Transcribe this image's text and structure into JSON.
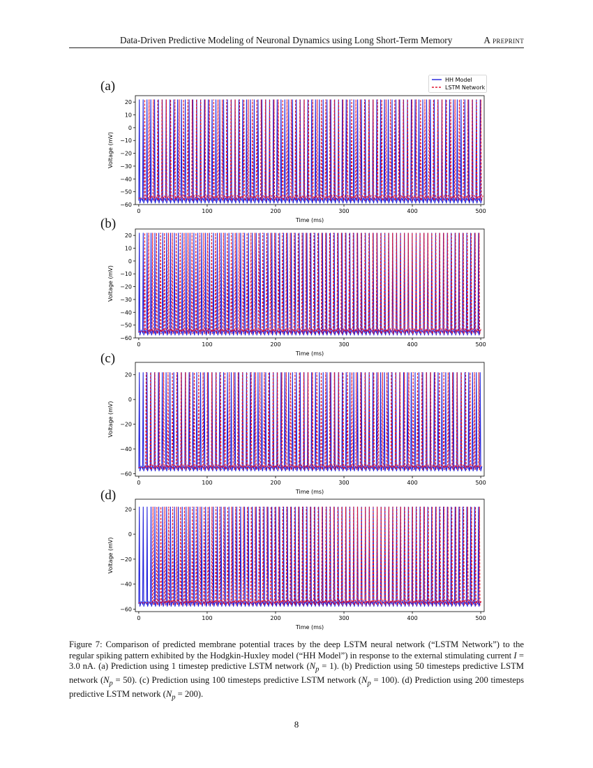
{
  "header": {
    "title": "Data-Driven Predictive Modeling of Neuronal Dynamics using Long Short-Term Memory",
    "tag": "A preprint"
  },
  "legend": {
    "hh_label": "HH Model",
    "lstm_label": "LSTM Network",
    "hh_color": "#1f1fdc",
    "lstm_color": "#e01530"
  },
  "chart_data": [
    {
      "panel": "(a)",
      "type": "line",
      "xlabel": "Time (ms)",
      "ylabel": "Voltage (mV)",
      "xlim": [
        -5,
        505
      ],
      "ylim": [
        -60,
        25
      ],
      "xticks": [
        0,
        100,
        200,
        300,
        400,
        500
      ],
      "yticks": [
        -60,
        -50,
        -40,
        -30,
        -20,
        -10,
        0,
        10,
        20
      ],
      "series": [
        {
          "name": "HH Model",
          "style": "solid",
          "spike_start_ms": 0,
          "interspike_ms": 5.6,
          "peak_mv": 22,
          "rest_mv": -57
        },
        {
          "name": "LSTM Network",
          "style": "dashed",
          "spike_start_ms": 8,
          "interspike_ms": 6.3,
          "peak_mv": 22,
          "rest_mv": -55
        }
      ]
    },
    {
      "panel": "(b)",
      "type": "line",
      "xlabel": "Time (ms)",
      "ylabel": "Voltage (mV)",
      "xlim": [
        -5,
        505
      ],
      "ylim": [
        -60,
        25
      ],
      "xticks": [
        0,
        100,
        200,
        300,
        400,
        500
      ],
      "yticks": [
        -60,
        -50,
        -40,
        -30,
        -20,
        -10,
        0,
        10,
        20
      ],
      "series": [
        {
          "name": "HH Model",
          "style": "solid",
          "spike_start_ms": 0,
          "interspike_ms": 5.7,
          "peak_mv": 22,
          "rest_mv": -56
        },
        {
          "name": "LSTM Network",
          "style": "dashed",
          "spike_start_ms": 8,
          "interspike_ms": 5.75,
          "peak_mv": 22,
          "rest_mv": -55
        }
      ]
    },
    {
      "panel": "(c)",
      "type": "line",
      "xlabel": "Time (ms)",
      "ylabel": "Voltage (mV)",
      "xlim": [
        -5,
        505
      ],
      "ylim": [
        -62,
        30
      ],
      "xticks": [
        0,
        100,
        200,
        300,
        400,
        500
      ],
      "yticks": [
        -60,
        -40,
        -20,
        0,
        20
      ],
      "series": [
        {
          "name": "HH Model",
          "style": "solid",
          "spike_start_ms": 0,
          "interspike_ms": 5.6,
          "peak_mv": 22,
          "rest_mv": -56
        },
        {
          "name": "LSTM Network",
          "style": "dashed",
          "spike_start_ms": 10,
          "interspike_ms": 6.4,
          "peak_mv": 22,
          "rest_mv": -55
        }
      ]
    },
    {
      "panel": "(d)",
      "type": "line",
      "xlabel": "Time (ms)",
      "ylabel": "Voltage (mV)",
      "xlim": [
        -5,
        505
      ],
      "ylim": [
        -62,
        28
      ],
      "xticks": [
        0,
        100,
        200,
        300,
        400,
        500
      ],
      "yticks": [
        -60,
        -40,
        -20,
        0,
        20
      ],
      "series": [
        {
          "name": "HH Model",
          "style": "solid",
          "spike_start_ms": 0,
          "interspike_ms": 5.7,
          "peak_mv": 22,
          "rest_mv": -56
        },
        {
          "name": "LSTM Network",
          "style": "dashed",
          "spike_start_ms": 20,
          "interspike_ms": 5.75,
          "peak_mv": 22,
          "rest_mv": -55
        }
      ]
    }
  ],
  "caption": {
    "lead": "Figure 7: Comparison of predicted membrane potential traces by the deep LSTM neural network (“LSTM Network”) to the regular spiking pattern exhibited by the Hodgkin-Huxley model (“HH Model”) in response to the external stimulating current ",
    "current_symbol": "I",
    "current_value": " = 3.0 nA. ",
    "part_a": "(a) Prediction using 1 timestep predictive LSTM network (",
    "part_a_np": " = 1). ",
    "part_b": "(b) Prediction using 50 timesteps predictive LSTM network (",
    "part_b_np": " = 50). ",
    "part_c": "(c) Prediction using 100 timesteps predictive LSTM network (",
    "part_c_np": " = 100). ",
    "part_d": "(d) Prediction using 200 timesteps predictive LSTM network (",
    "part_d_np": " = 200).",
    "np_symbol": "N",
    "np_sub": "p"
  },
  "page_number": "8"
}
